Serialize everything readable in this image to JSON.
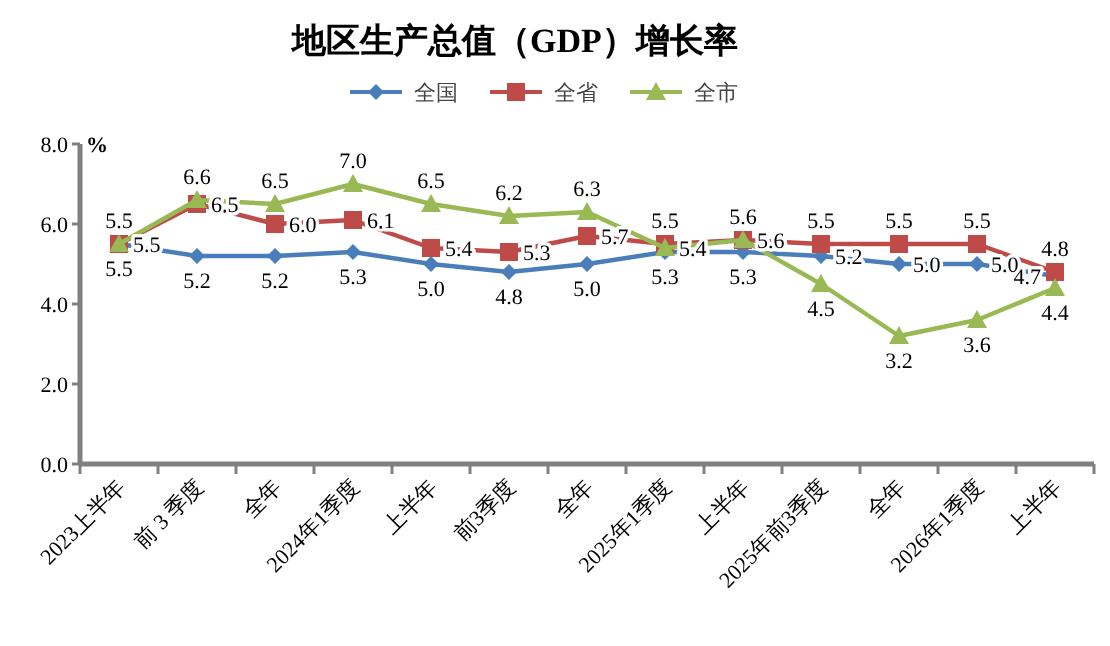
{
  "chart_data": {
    "type": "line",
    "title": "地区生产总值（GDP）增长率",
    "ylabel": "%",
    "categories": [
      "2023上半年",
      "前 3 季度",
      "全年",
      "2024年1季度",
      "上半年",
      "前3季度",
      "全年",
      "2025年1季度",
      "上半年",
      "2025年前3季度",
      "全年",
      "2026年1季度",
      "上半年"
    ],
    "series": [
      {
        "name": "全国",
        "color": "#4a7ebb",
        "marker": "diamond",
        "values": [
          5.5,
          5.2,
          5.2,
          5.3,
          5.0,
          4.8,
          5.0,
          5.3,
          5.3,
          5.2,
          5.0,
          5.0,
          4.7
        ],
        "value_labels": [
          "5.5",
          "5.2",
          "5.2",
          "5.3",
          "5.0",
          "4.8",
          "5.0",
          "5.3",
          "5.3",
          "5.2",
          "5.0",
          "5.0",
          "4.7"
        ]
      },
      {
        "name": "全省",
        "color": "#be4b48",
        "marker": "square",
        "values": [
          5.5,
          6.5,
          6.0,
          6.1,
          5.4,
          5.3,
          5.7,
          5.5,
          5.6,
          5.5,
          5.5,
          5.5,
          4.8
        ],
        "value_labels": [
          "5.5",
          "6.5",
          "6.0",
          "6.1",
          "5.4",
          "5.3",
          "5.7",
          "5.5",
          "5.6",
          "5.5",
          "5.5",
          "5.5",
          "4.8"
        ]
      },
      {
        "name": "全市",
        "color": "#98b954",
        "marker": "triangle",
        "values": [
          5.5,
          6.6,
          6.5,
          7.0,
          6.5,
          6.2,
          6.3,
          5.4,
          5.6,
          4.5,
          3.2,
          3.6,
          4.4
        ],
        "value_labels": [
          "5.5",
          "6.6",
          "6.5",
          "7.0",
          "6.5",
          "6.2",
          "6.3",
          "5.4",
          "5.6",
          "4.5",
          "3.2",
          "3.6",
          "4.4"
        ]
      }
    ],
    "ylim": [
      0,
      8
    ],
    "yticks": [
      {
        "value": 0,
        "label": "0.0"
      },
      {
        "value": 2,
        "label": "2.0"
      },
      {
        "value": 4,
        "label": "4.0"
      },
      {
        "value": 6,
        "label": "6.0"
      },
      {
        "value": 8,
        "label": "8.0"
      }
    ],
    "grid": false,
    "legend": "top",
    "line_style": "solid"
  }
}
